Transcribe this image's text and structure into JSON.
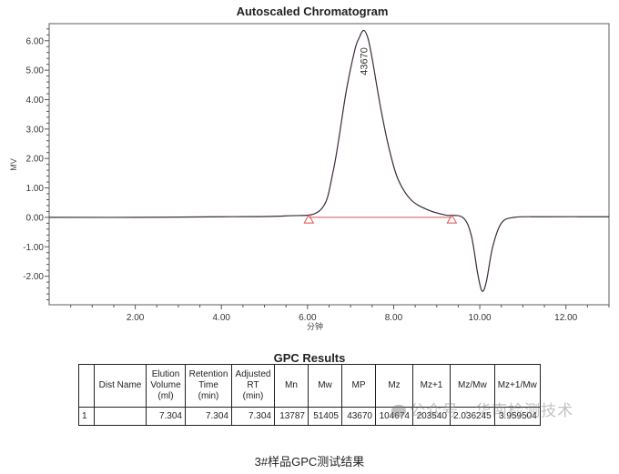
{
  "chart_data": {
    "type": "line",
    "title": "Autoscaled Chromatogram",
    "xlabel": "分钟",
    "ylabel": "MV",
    "xlim": [
      0,
      13.0
    ],
    "ylim": [
      -2.97,
      6.58
    ],
    "x_ticks": [
      "2.00",
      "4.00",
      "6.00",
      "8.00",
      "10.00",
      "12.00"
    ],
    "y_ticks": [
      "6.00",
      "5.00",
      "4.00",
      "3.00",
      "2.00",
      "1.00",
      "0.00",
      "-1.00",
      "-2.00"
    ],
    "grid": false,
    "series": [
      {
        "name": "Chromatogram (MV)",
        "color": "#3a2a3a",
        "x": [
          0.0,
          2.0,
          4.0,
          5.5,
          6.3,
          6.6,
          6.9,
          7.1,
          7.2,
          7.3,
          7.4,
          7.5,
          7.7,
          7.9,
          8.1,
          8.4,
          8.8,
          9.2,
          9.6,
          9.8,
          9.95,
          10.05,
          10.15,
          10.3,
          10.5,
          10.8,
          11.5,
          13.0
        ],
        "y": [
          0.0,
          0.0,
          0.02,
          0.05,
          0.25,
          1.6,
          4.3,
          5.7,
          6.1,
          6.35,
          6.1,
          5.4,
          3.7,
          2.3,
          1.3,
          0.6,
          0.25,
          0.08,
          0.0,
          -0.6,
          -1.9,
          -2.5,
          -2.2,
          -1.0,
          -0.2,
          0.0,
          0.02,
          0.02
        ]
      },
      {
        "name": "Baseline",
        "color": "#e05050",
        "x": [
          6.03,
          9.35
        ],
        "y": [
          0.0,
          0.0
        ]
      }
    ],
    "markers": [
      {
        "type": "triangle",
        "x": 6.03,
        "y": -0.07,
        "color": "#e05050"
      },
      {
        "type": "triangle",
        "x": 9.35,
        "y": -0.07,
        "color": "#e05050"
      }
    ],
    "annotations": [
      {
        "text": "43670",
        "x": 7.3,
        "y": 5.3,
        "rotation": -90
      }
    ]
  },
  "results": {
    "title": "GPC Results",
    "columns": [
      "",
      "Dist Name",
      "Elution\nVolume\n(ml)",
      "Retention\nTime\n(min)",
      "Adjusted\nRT\n(min)",
      "Mn",
      "Mw",
      "MP",
      "Mz",
      "Mz+1",
      "Mz/Mw",
      "Mz+1/Mw"
    ],
    "rows": [
      [
        "1",
        "",
        "7.304",
        "7.304",
        "7.304",
        "13787",
        "51405",
        "43670",
        "104674",
        "203540",
        "2.036245",
        "3.959504"
      ]
    ]
  },
  "watermark": "公众号 · 华南检测技术",
  "caption": "3#样品GPC测试结果"
}
